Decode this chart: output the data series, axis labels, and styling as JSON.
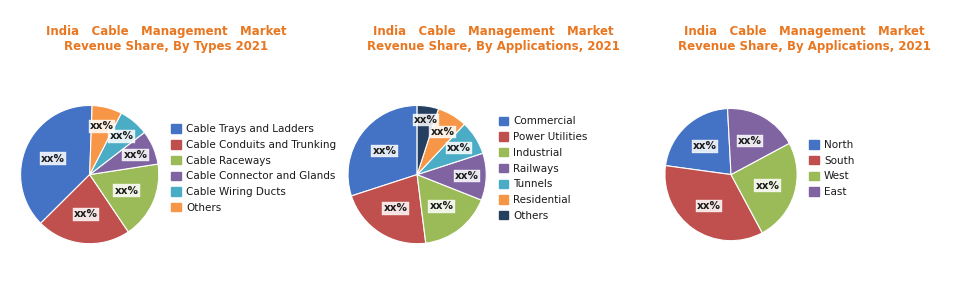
{
  "chart1": {
    "title_line1": "India   Cable   Management   Market",
    "title_line2": "Revenue Share, By Types 2021",
    "labels": [
      "Cable Trays and Ladders",
      "Cable Conduits and Trunking",
      "Cable Raceways",
      "Cable Connector and Glands",
      "Cable Wiring Ducts",
      "Others"
    ],
    "values": [
      38,
      22,
      18,
      8,
      7,
      7
    ],
    "colors": [
      "#4472C4",
      "#C0504D",
      "#9BBB59",
      "#8064A2",
      "#4BACC6",
      "#F79646"
    ],
    "startangle": 88
  },
  "chart2": {
    "title_line1": "India   Cable   Management   Market",
    "title_line2": "Revenue Share, By Applications, 2021",
    "labels": [
      "Commercial",
      "Power Utilities",
      "Industrial",
      "Railways",
      "Tunnels",
      "Residential",
      "Others"
    ],
    "values": [
      30,
      22,
      17,
      11,
      8,
      7,
      5
    ],
    "colors": [
      "#4472C4",
      "#C0504D",
      "#9BBB59",
      "#8064A2",
      "#4BACC6",
      "#F79646",
      "#243F60"
    ],
    "startangle": 90
  },
  "chart3": {
    "title_line1": "India   Cable   Management   Market",
    "title_line2": "Revenue Share, By Applications, 2021",
    "labels": [
      "North",
      "South",
      "West",
      "East"
    ],
    "values": [
      22,
      35,
      25,
      18
    ],
    "colors": [
      "#4472C4",
      "#C0504D",
      "#9BBB59",
      "#8064A2"
    ],
    "startangle": 93
  },
  "title_color": "#E87722",
  "label_color": "#1A1A1A",
  "bg_color": "#FFFFFF",
  "pct_fontsize": 7.5,
  "legend_fontsize": 7.5,
  "title_fontsize": 8.5
}
